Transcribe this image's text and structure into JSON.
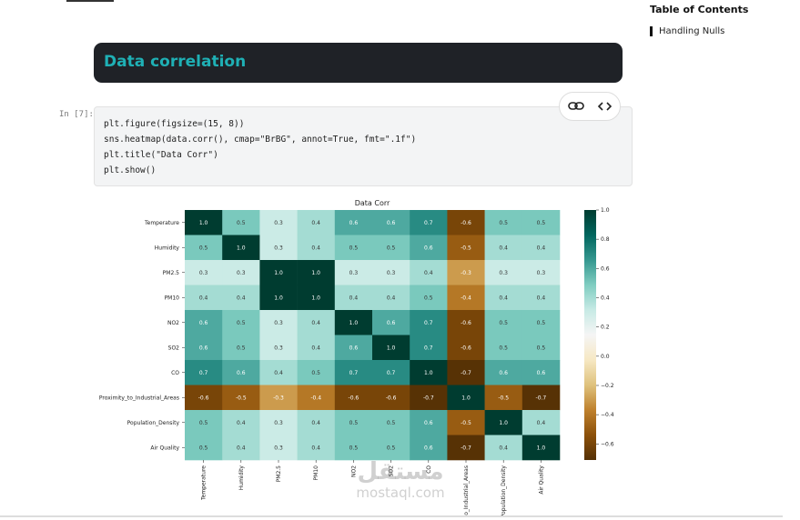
{
  "toc": {
    "title": "Table of Contents",
    "items": [
      "Handling Nulls"
    ]
  },
  "section": {
    "title": "Data correlation"
  },
  "cell": {
    "prompt": "In [7]:",
    "code": [
      "plt.figure(figsize=(15, 8))",
      "sns.heatmap(data.corr(), cmap=\"BrBG\", annot=True, fmt=\".1f\")",
      "plt.title(\"Data Corr\")",
      "plt.show()"
    ]
  },
  "chart_data": {
    "type": "heatmap",
    "title": "Data Corr",
    "colormap": "BrBG",
    "rows": [
      "Temperature",
      "Humidity",
      "PM2.5",
      "PM10",
      "NO2",
      "SO2",
      "CO",
      "Proximity_to_Industrial_Areas",
      "Population_Density",
      "Air Quality"
    ],
    "columns": [
      "Temperature",
      "Humidity",
      "PM2.5",
      "PM10",
      "NO2",
      "SO2",
      "CO",
      "Proximity_to_Industrial_Areas",
      "Population_Density",
      "Air Quality"
    ],
    "values": [
      [
        1,
        0.5,
        0.3,
        0.4,
        0.6,
        0.6,
        0.7,
        -0.6,
        0.5,
        0.5
      ],
      [
        0.5,
        1,
        0.3,
        0.4,
        0.5,
        0.5,
        0.6,
        -0.5,
        0.4,
        0.4
      ],
      [
        0.3,
        0.3,
        1,
        1,
        0.3,
        0.3,
        0.4,
        -0.3,
        0.3,
        0.3
      ],
      [
        0.4,
        0.4,
        1,
        1,
        0.4,
        0.4,
        0.5,
        -0.4,
        0.4,
        0.4
      ],
      [
        0.6,
        0.5,
        0.3,
        0.4,
        1,
        0.6,
        0.7,
        -0.6,
        0.5,
        0.5
      ],
      [
        0.6,
        0.5,
        0.3,
        0.4,
        0.6,
        1,
        0.7,
        -0.6,
        0.5,
        0.5
      ],
      [
        0.7,
        0.6,
        0.4,
        0.5,
        0.7,
        0.7,
        1,
        -0.7,
        0.6,
        0.6
      ],
      [
        -0.6,
        -0.5,
        -0.3,
        -0.4,
        -0.6,
        -0.6,
        -0.7,
        1,
        -0.5,
        -0.7
      ],
      [
        0.5,
        0.4,
        0.3,
        0.4,
        0.5,
        0.5,
        0.6,
        -0.5,
        1,
        0.4
      ],
      [
        0.5,
        0.4,
        0.3,
        0.4,
        0.5,
        0.5,
        0.6,
        -0.7,
        0.4,
        1
      ]
    ],
    "value_labels": [
      [
        "1.0",
        "0.5",
        "0.3",
        "0.4",
        "0.6",
        "0.6",
        "0.7",
        "-0.6",
        "0.5",
        "0.5"
      ],
      [
        "0.5",
        "1.0",
        "0.3",
        "0.4",
        "0.5",
        "0.5",
        "0.6",
        "-0.5",
        "0.4",
        "0.4"
      ],
      [
        "0.3",
        "0.3",
        "1.0",
        "1.0",
        "0.3",
        "0.3",
        "0.4",
        "-0.3",
        "0.3",
        "0.3"
      ],
      [
        "0.4",
        "0.4",
        "1.0",
        "1.0",
        "0.4",
        "0.4",
        "0.5",
        "-0.4",
        "0.4",
        "0.4"
      ],
      [
        "0.6",
        "0.5",
        "0.3",
        "0.4",
        "1.0",
        "0.6",
        "0.7",
        "-0.6",
        "0.5",
        "0.5"
      ],
      [
        "0.6",
        "0.5",
        "0.3",
        "0.4",
        "0.6",
        "1.0",
        "0.7",
        "-0.6",
        "0.5",
        "0.5"
      ],
      [
        "0.7",
        "0.6",
        "0.4",
        "0.5",
        "0.7",
        "0.7",
        "1.0",
        "-0.7",
        "0.6",
        "0.6"
      ],
      [
        "-0.6",
        "-0.5",
        "-0.3",
        "-0.4",
        "-0.6",
        "-0.6",
        "-0.7",
        "1.0",
        "-0.5",
        "-0.7"
      ],
      [
        "0.5",
        "0.4",
        "0.3",
        "0.4",
        "0.5",
        "0.5",
        "0.6",
        "-0.5",
        "1.0",
        "0.4"
      ],
      [
        "0.5",
        "0.4",
        "0.3",
        "0.4",
        "0.5",
        "0.5",
        "0.6",
        "-0.7",
        "0.4",
        "1.0"
      ]
    ],
    "clim": [
      -0.71,
      1
    ],
    "cticks": [
      {
        "value": 1,
        "label": "1.0"
      },
      0.8,
      0.6,
      0.4,
      0.2,
      {
        "value": 0,
        "label": "0.0"
      },
      {
        "value": -0.2,
        "label": "−0.2"
      },
      {
        "value": -0.4,
        "label": "−0.4"
      },
      {
        "value": -0.6,
        "label": "−0.6"
      }
    ]
  },
  "watermark": {
    "arabic": "مستقل",
    "site": "mostaql.com"
  }
}
